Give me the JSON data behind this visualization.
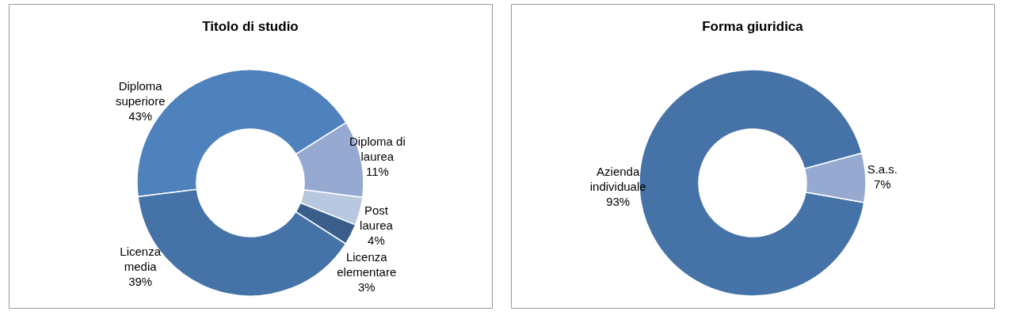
{
  "chart_data": [
    {
      "type": "donut",
      "title": "Titolo di studio",
      "categories": [
        "Diploma superiore",
        "Diploma di laurea",
        "Post laurea",
        "Licenza elementare",
        "Licenza media"
      ],
      "values": [
        43,
        11,
        4,
        3,
        39
      ],
      "value_labels": [
        "43%",
        "11%",
        "4%",
        "3%",
        "39%"
      ],
      "colors": [
        "#4f81bd",
        "#95a9d1",
        "#b9c8e1",
        "#3a5e8c",
        "#4573a7"
      ],
      "legend": false
    },
    {
      "type": "donut",
      "title": "Forma giuridica",
      "categories": [
        "Azienda individuale",
        "S.a.s."
      ],
      "values": [
        93,
        7
      ],
      "value_labels": [
        "93%",
        "7%"
      ],
      "colors": [
        "#4572a7",
        "#95a9d1"
      ],
      "legend": false
    }
  ]
}
